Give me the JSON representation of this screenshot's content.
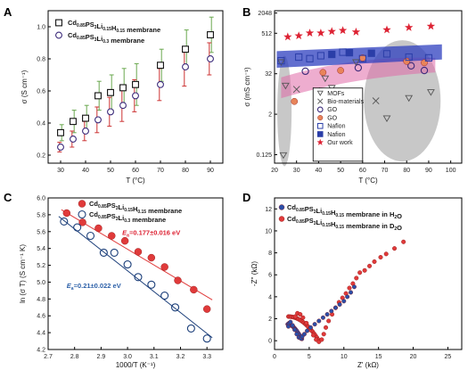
{
  "chart_data": [
    {
      "panel": "A",
      "type": "scatter",
      "xlabel": "T (°C)",
      "ylabel": "σ (S cm⁻¹)",
      "xticks": [
        30,
        40,
        50,
        60,
        70,
        80,
        90
      ],
      "yticks": [
        0.2,
        0.4,
        0.6,
        0.8,
        1.0
      ],
      "xlim": [
        25,
        95
      ],
      "ylim": [
        0.15,
        1.1
      ],
      "series": [
        {
          "name_pre": "Cd",
          "name_sub1": "0.85",
          "name_mid": "PS",
          "name_sub2": "3",
          "name_mid2": "Li",
          "name_sub3": "0.15",
          "name_mid3": "H",
          "name_sub4": "0.15",
          "name_post": " membrane",
          "name": "Cd0.85PS3Li0.15H0.15 membrane",
          "marker": "square",
          "color": "#111111",
          "errcolor": "#6aa84f",
          "x": [
            30,
            35,
            40,
            45,
            50,
            55,
            60,
            70,
            80,
            90
          ],
          "values": [
            0.34,
            0.41,
            0.43,
            0.57,
            0.59,
            0.62,
            0.64,
            0.76,
            0.86,
            0.95
          ],
          "err": [
            0.05,
            0.07,
            0.08,
            0.09,
            0.11,
            0.12,
            0.13,
            0.1,
            0.12,
            0.11
          ]
        },
        {
          "name_pre": "Cd",
          "name_sub1": "0.85",
          "name_mid": "PS",
          "name_sub2": "3",
          "name_mid2": "Li",
          "name_sub3": "0.3",
          "name_mid3": "",
          "name_sub4": "",
          "name_post": " membrane",
          "name": "Cd0.85PS3Li0.3 membrane",
          "marker": "circle",
          "color": "#3b2a7a",
          "errcolor": "#cc3333",
          "x": [
            30,
            35,
            40,
            45,
            50,
            55,
            60,
            70,
            80,
            90
          ],
          "values": [
            0.25,
            0.3,
            0.35,
            0.42,
            0.47,
            0.51,
            0.57,
            0.64,
            0.75,
            0.8
          ],
          "err": [
            0.03,
            0.05,
            0.06,
            0.08,
            0.09,
            0.1,
            0.1,
            0.1,
            0.12,
            0.1
          ]
        }
      ]
    },
    {
      "panel": "B",
      "type": "scatter",
      "xlabel": "T (°C)",
      "ylabel": "σ (mS cm⁻¹)",
      "yscale": "log2",
      "xticks": [
        20,
        30,
        40,
        50,
        60,
        70,
        80,
        90,
        100
      ],
      "yticks": [
        "0.125",
        "2",
        "32",
        "512",
        "2048"
      ],
      "ytick_values": [
        0.125,
        2,
        32,
        512,
        2048
      ],
      "xlim": [
        20,
        105
      ],
      "ylim": [
        0.07,
        2400
      ],
      "legend": [
        "MOFs",
        "Bio-materials",
        "GO",
        "GO",
        "Nafion",
        "Nafion",
        "Our work"
      ],
      "groups": [
        {
          "name": "MOFs",
          "marker": "tri-down-open",
          "color": "#555555",
          "points": [
            [
              23,
              70
            ],
            [
              24,
              0.12
            ],
            [
              25,
              14
            ],
            [
              43,
              23
            ],
            [
              46,
              12
            ],
            [
              57,
              70
            ],
            [
              71,
              1.5
            ],
            [
              81,
              6
            ],
            [
              91,
              9
            ]
          ]
        },
        {
          "name": "Bio-materials",
          "marker": "x",
          "color": "#555555",
          "points": [
            [
              30,
              11
            ],
            [
              39,
              10
            ],
            [
              66,
              5
            ]
          ]
        },
        {
          "name": "GO",
          "marker": "circle-open",
          "color": "#3b2a7a",
          "points": [
            [
              34,
              38
            ],
            [
              58,
              48
            ],
            [
              82,
              55
            ],
            [
              88,
              40
            ]
          ]
        },
        {
          "name": "GO",
          "marker": "circle-filled",
          "color": "#e8845a",
          "points": [
            [
              29,
              4.8
            ],
            [
              42,
              35
            ],
            [
              50,
              40
            ],
            [
              60,
              95
            ],
            [
              80,
              75
            ],
            [
              88,
              68
            ]
          ]
        },
        {
          "name": "Nafion",
          "marker": "square-open",
          "color": "#2b3ea8",
          "points": [
            [
              23,
              78
            ],
            [
              31,
              100
            ],
            [
              36,
              90
            ],
            [
              41,
              110
            ],
            [
              51,
              140
            ],
            [
              60,
              90
            ],
            [
              71,
              125
            ],
            [
              81,
              100
            ],
            [
              90,
              95
            ]
          ]
        },
        {
          "name": "Nafion",
          "marker": "square-filled",
          "color": "#2b3ea8",
          "points": [
            [
              46,
              120
            ],
            [
              54,
              135
            ],
            [
              64,
              130
            ]
          ]
        },
        {
          "name": "Our work",
          "marker": "star",
          "color": "#dd2233",
          "points": [
            [
              26,
              400
            ],
            [
              31,
              430
            ],
            [
              36,
              520
            ],
            [
              41,
              520
            ],
            [
              46,
              580
            ],
            [
              51,
              620
            ],
            [
              57,
              560
            ],
            [
              71,
              650
            ],
            [
              81,
              760
            ],
            [
              91,
              830
            ]
          ]
        }
      ]
    },
    {
      "panel": "C",
      "type": "scatter",
      "xlabel": "1000/T (K⁻¹)",
      "ylabel": "ln (σ T) (S cm⁻¹ K)",
      "xticks": [
        2.7,
        2.8,
        2.9,
        3.0,
        3.1,
        3.2,
        3.3
      ],
      "yticks": [
        4.2,
        4.4,
        4.6,
        4.8,
        5.0,
        5.2,
        5.4,
        5.6,
        5.8,
        6.0
      ],
      "xlim": [
        2.7,
        3.36
      ],
      "ylim": [
        4.2,
        6.0
      ],
      "annotations": [
        {
          "pre": "E",
          "sub": "a",
          "text": "=0.177±0.016 eV",
          "color": "#dd2233"
        },
        {
          "pre": "E",
          "sub": "a",
          "text": "=0.21±0.022 eV",
          "color": "#2b5fa8"
        }
      ],
      "series": [
        {
          "name": "Cd0.85PS3Li0.15H0.15 membrane",
          "name_pre": "Cd",
          "name_sub1": "0.85",
          "name_mid": "PS",
          "name_sub2": "3",
          "name_mid2": "Li",
          "name_sub3": "0.15",
          "name_mid3": "H",
          "name_sub4": "0.15",
          "name_post": " membrane",
          "marker": "circle-filled",
          "color": "#e03a3a",
          "x": [
            2.77,
            2.83,
            2.89,
            2.94,
            2.99,
            3.04,
            3.09,
            3.14,
            3.19,
            3.25,
            3.3
          ],
          "values": [
            5.82,
            5.71,
            5.64,
            5.55,
            5.49,
            5.36,
            5.29,
            5.18,
            5.02,
            4.91,
            4.68
          ],
          "fit": [
            [
              2.75,
              5.86
            ],
            [
              3.32,
              4.79
            ]
          ]
        },
        {
          "name": "Cd0.85PS3Li0.3 membrane",
          "name_pre": "Cd",
          "name_sub1": "0.85",
          "name_mid": "PS",
          "name_sub2": "3",
          "name_mid2": "Li",
          "name_sub3": "0.3",
          "name_mid3": "",
          "name_sub4": "",
          "name_post": " membrane",
          "marker": "circle-open",
          "color": "#1c3f7a",
          "x": [
            2.76,
            2.81,
            2.86,
            2.91,
            2.95,
            3.0,
            3.04,
            3.09,
            3.14,
            3.18,
            3.24,
            3.3
          ],
          "values": [
            5.72,
            5.65,
            5.55,
            5.35,
            5.35,
            5.21,
            5.06,
            4.97,
            4.84,
            4.7,
            4.45,
            4.33
          ],
          "fit": [
            [
              2.74,
              5.78
            ],
            [
              3.32,
              4.34
            ]
          ]
        }
      ]
    },
    {
      "panel": "D",
      "type": "scatter",
      "xlabel": "Z' (kΩ)",
      "ylabel": "-Z'' (kΩ)",
      "xticks": [
        0,
        5,
        10,
        15,
        20,
        25
      ],
      "yticks": [
        0,
        2,
        4,
        6,
        8,
        10,
        12
      ],
      "xlim": [
        0,
        27
      ],
      "ylim": [
        -0.8,
        13
      ],
      "series": [
        {
          "name": "Cd0.85PS3Li0.15H0.15 membrane in H2O",
          "name_pre": "Cd",
          "name_sub1": "0.85",
          "name_mid": "PS",
          "name_sub2": "3",
          "name_mid2": "Li",
          "name_sub3": "0.15",
          "name_mid3": "H",
          "name_sub4": "0.15",
          "name_post": " membrane in H",
          "name_sub5": "2",
          "name_post2": "O",
          "marker": "circle-filled",
          "color": "#2b4fa8"
        },
        {
          "name": "Cd0.85PS3Li0.15H0.15 membrane in D2O",
          "name_pre": "Cd",
          "name_sub1": "0.85",
          "name_mid": "PS",
          "name_sub2": "3",
          "name_mid2": "Li",
          "name_sub3": "0.15",
          "name_mid3": "H",
          "name_sub4": "0.15",
          "name_post": " membrane in D",
          "name_sub5": "2",
          "name_post2": "O",
          "marker": "circle-filled",
          "color": "#e03a3a"
        }
      ]
    }
  ],
  "panels": {
    "a": "A",
    "b": "B",
    "c": "C",
    "d": "D"
  }
}
